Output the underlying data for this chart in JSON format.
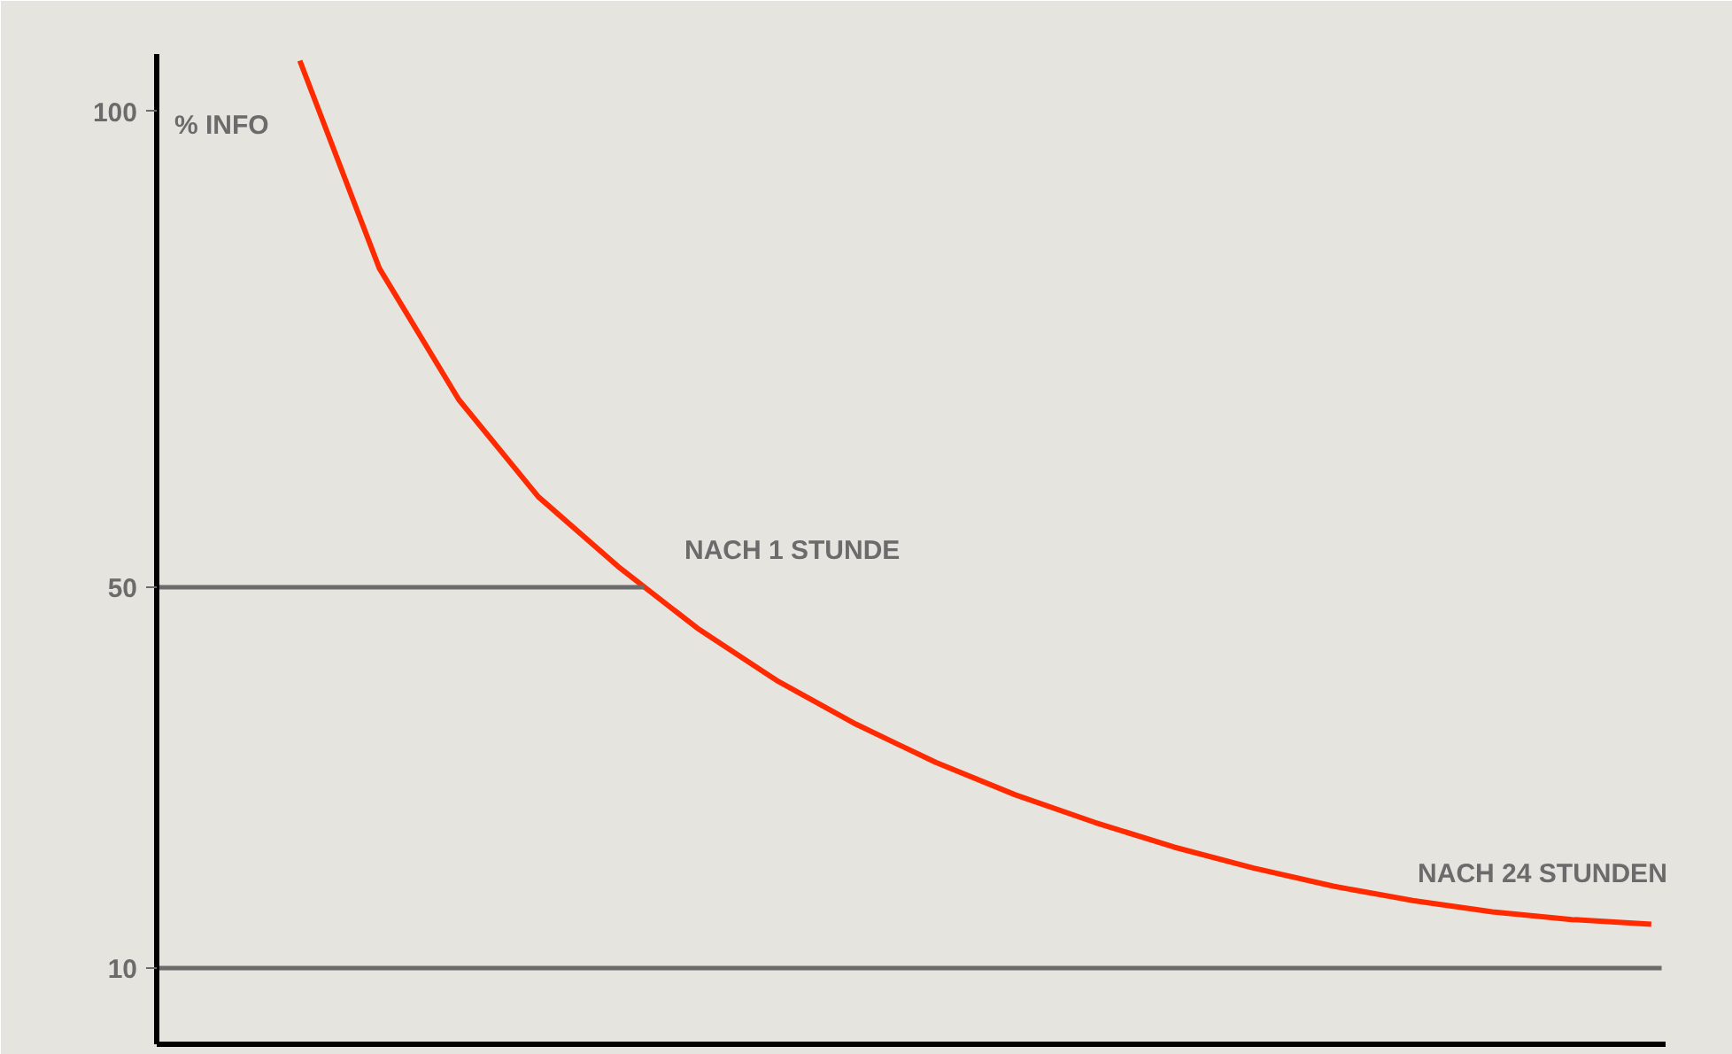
{
  "chart_data": {
    "type": "line",
    "ylabel": "% INFO",
    "categories": [
      null,
      null,
      null,
      null,
      null,
      null,
      null,
      null,
      null,
      null,
      null,
      null,
      null,
      null,
      null,
      null,
      null,
      null
    ],
    "series": [
      {
        "color": "#ff2a00",
        "values": [
          105.3,
          83.5,
          69.7,
          59.5,
          52.2,
          45.7,
          40.2,
          35.6,
          31.6,
          28.2,
          25.3,
          22.7,
          20.5,
          18.6,
          17.1,
          15.9,
          15.1,
          14.6
        ]
      }
    ],
    "ylim": [
      2,
      106
    ],
    "yticks": [
      10,
      50,
      100
    ],
    "ref_lines": [
      {
        "axis": "y",
        "value": 50,
        "color": "#6b6b6b"
      },
      {
        "axis": "y",
        "value": 10,
        "color": "#6b6b6b"
      }
    ],
    "annotations": [
      "NACH 1 STUNDE",
      "NACH 24 STUNDEN"
    ],
    "tick_labels": "y",
    "grid": false,
    "marker": "none",
    "line_style": "solid"
  }
}
